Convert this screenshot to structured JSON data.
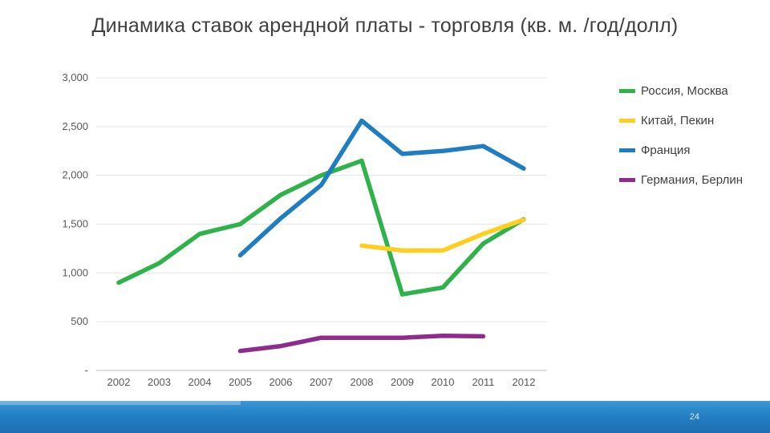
{
  "title": "Динамика ставок арендной платы - торговля (кв. м. /год/долл)",
  "page_number": "24",
  "colors": {
    "green": "#2db34a",
    "yellow": "#ffce1f",
    "blue": "#1f7dc2",
    "purple": "#8e2c8e",
    "footer_blue": "#2280c4",
    "grid": "#e6e6e6",
    "axis": "#bfbfbf",
    "tick_text": "#595959"
  },
  "chart_data": {
    "type": "line",
    "title": "Динамика ставок арендной платы - торговля (кв. м. /год/долл)",
    "categories": [
      "2002",
      "2003",
      "2004",
      "2005",
      "2006",
      "2007",
      "2008",
      "2009",
      "2010",
      "2011",
      "2012"
    ],
    "xlabel": "",
    "ylabel": "",
    "ylim": [
      0,
      3000
    ],
    "grid": true,
    "legend_position": "right",
    "y_tick_values": [
      3000,
      2500,
      2000,
      1500,
      1000,
      500,
      0
    ],
    "y_tick_labels": [
      "3,000",
      "2,500",
      "2,000",
      "1,500",
      "1,000",
      "500",
      "-"
    ],
    "series": [
      {
        "name": "Россия, Москва",
        "color": "#2db34a",
        "values": [
          900,
          1100,
          1400,
          1500,
          1800,
          2000,
          2150,
          780,
          850,
          1300,
          1550
        ]
      },
      {
        "name": "Китай, Пекин",
        "color": "#ffce1f",
        "values": [
          null,
          null,
          null,
          null,
          null,
          null,
          1280,
          1230,
          1230,
          1400,
          1545
        ]
      },
      {
        "name": "Франция",
        "color": "#1f7dc2",
        "values": [
          null,
          null,
          null,
          1180,
          1560,
          1900,
          2560,
          2220,
          2250,
          2300,
          2070
        ]
      },
      {
        "name": "Германия, Берлин",
        "color": "#8e2c8e",
        "values": [
          null,
          null,
          null,
          200,
          250,
          335,
          335,
          335,
          355,
          350,
          null
        ]
      }
    ]
  }
}
